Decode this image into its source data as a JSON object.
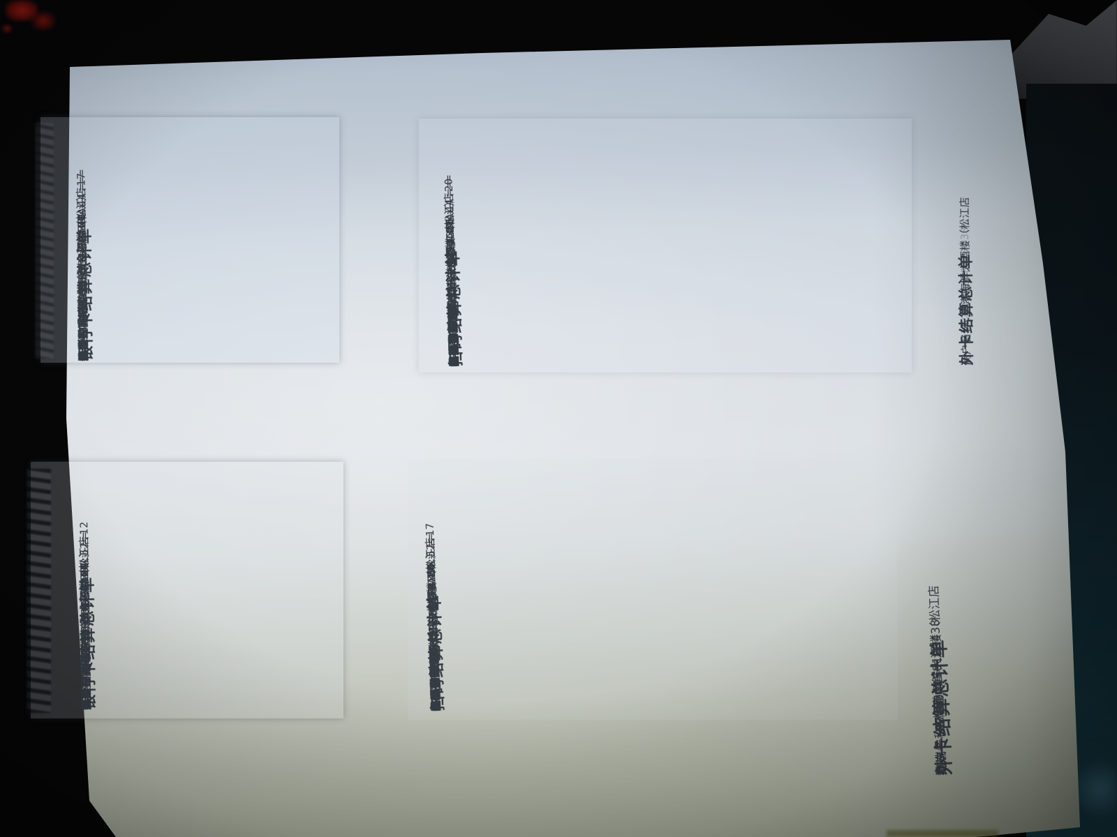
{
  "photo": {
    "background_color": "#060607",
    "paper_tint_top": "#b3bfcd",
    "paper_tint_bottom": "#969c8b",
    "ink_color": "#363c44",
    "stamp_color": "#8e1712"
  },
  "receipts": {
    "bank_2144": {
      "title": "银行卡结算总计单",
      "merchant_lines": [
        "商户名称:榕港海鲜大酒楼（松江店",
        "）"
      ],
      "info_lines": [
        "商户号:822290058123438",
        "终端号:92983597",
        "批次号:000219",
        "日期/时间:2021/10/31 21:44:17",
        "内卡对账平"
      ],
      "summary_title": "===终端结算总计（SUM TOTAL）===",
      "section_line": "----------内卡----------",
      "col_type": "类型/TYPE",
      "col_sum": "总笔数/SUM",
      "col_amt": "总金额/AMT",
      "divider": "------------------------",
      "rows": [
        {
          "label": "消费",
          "amount": "0.00",
          "count": "0"
        },
        {
          "label": "退货",
          "amount": "0.00",
          "count": "0"
        },
        {
          "label": "预授权完成",
          "amount": "0.00",
          "count": "0"
        },
        {
          "label": "总计",
          "amount": "0.00",
          "count": "0"
        }
      ]
    },
    "scan_2144": {
      "title": "扫码结算总计单",
      "merchant_lines": [
        "商户名称:榕港海鲜大酒楼（松江店",
        "）"
      ],
      "info_lines": [
        "商户号:822290058123438",
        "终端号:92983598",
        "批次号:000220",
        "日期/时间:2021/10/31 21:44:20",
        "扫码对账平"
      ],
      "summary_title": "===终端结算总计（SUM TOTAL）===",
      "section_line": "----------扫码----------",
      "col_type": "类型/TYPE",
      "col_sum": "总笔数/SUM",
      "col_amt": "总金额/AMT",
      "divider": "------------------------",
      "rows": [
        {
          "label": "扫码支付",
          "amount": "25161.00",
          "count": "5"
        },
        {
          "label": "微信支付",
          "amount": "21960.00",
          "count": "4"
        },
        {
          "label": "支付宝支付",
          "amount": "0.00",
          "count": "0"
        },
        {
          "label": "银联扫码",
          "amount": "3201.00",
          "count": "1"
        },
        {
          "label": "其他扫码",
          "amount": "0.00",
          "count": "0"
        },
        {
          "label": "扫码退货",
          "amount": "0.00",
          "count": "0"
        },
        {
          "label": "担保交易完成",
          "amount": "0.00",
          "count": "0"
        },
        {
          "label": "优惠买单",
          "amount": "0.00",
          "count": "0"
        },
        {
          "label": "优惠买单退货",
          "amount": "0.00",
          "count": "0"
        },
        {
          "label": "总计",
          "amount": "25161.00",
          "count": "5"
        }
      ]
    },
    "foreign_2144": {
      "title": "外卡结算总计单",
      "merchant_lines": [
        "商户名称:榕港海鲜大酒楼（松江店",
        "）"
      ],
      "faint_line": "商户号:822290058123438"
    },
    "bank_2052": {
      "title": "银行卡结算总计单",
      "merchant_lines": [
        "商户名称:榕港海鲜大酒楼（松江店",
        "）"
      ],
      "info_lines": [
        "商户号:822290058123438",
        "终端号:92983599",
        "批次号:000021",
        "日期/时间:2021/10/31 20:52:12",
        "内卡对账不平"
      ],
      "summary_title": "==终端结算总计（SUM TOTAL）==",
      "section_line": "----------内卡----------",
      "col_type": "类型/TYPE",
      "col_sum": "总笔数/SUM",
      "col_amt": "总金额/AMT",
      "divider": "------------------------",
      "rows": [
        {
          "label": "消费",
          "amount": "4193.00",
          "count": "2"
        },
        {
          "label": "退货",
          "amount": "0.00",
          "count": "0"
        },
        {
          "label": "预授权完成",
          "amount": "0.00",
          "count": "0"
        },
        {
          "label": "总计",
          "amount": "4193.00",
          "count": "2"
        }
      ]
    },
    "scan_2052": {
      "title": "扫码结算总计单",
      "merchant_lines": [
        "商户名称:榕港海鲜大酒楼（松江店",
        "）"
      ],
      "info_lines": [
        "商户号:822290058123438",
        "终端号:92983600",
        "批次号:000021",
        "日期/时间:2021/10/31 20:52:17",
        "扫码对账平"
      ],
      "summary_title": "==终端结算总计（SUM TOTAL）==",
      "section_line": "----------扫码----------",
      "col_type": "类型/TYPE",
      "col_sum": "总笔数/SUM",
      "col_amt": "总金额/AMT",
      "divider": "------------------------",
      "rows": [
        {
          "label": "扫码支付",
          "amount": "24545.00",
          "count": "12"
        },
        {
          "label": "微信支付",
          "amount": "17872.00",
          "count": "10"
        },
        {
          "label": "支付宝支付",
          "amount": "6673.00",
          "count": "2"
        },
        {
          "label": "银联扫码",
          "amount": "0.00",
          "count": "0"
        },
        {
          "label": "其他扫码",
          "amount": "0.00",
          "count": "0"
        },
        {
          "label": "扫码退货",
          "amount": "0.00",
          "count": "0"
        },
        {
          "label": "担保交易完成",
          "amount": "0.00",
          "count": "0"
        },
        {
          "label": "优惠买单",
          "amount": "0.00",
          "count": "0"
        },
        {
          "label": "优惠买单退货",
          "amount": "0.00",
          "count": "0"
        },
        {
          "label": "总计",
          "amount": "24545.00",
          "count": "12"
        }
      ]
    },
    "foreign_2052": {
      "title": "外卡结算总计单",
      "merchant_lines": [
        "商户名称:榕港海鲜大酒楼（松江店",
        "）"
      ],
      "info_lines": [
        "商户号:822290058123438",
        "终端号:47566017",
        "批次号:000021"
      ]
    }
  }
}
